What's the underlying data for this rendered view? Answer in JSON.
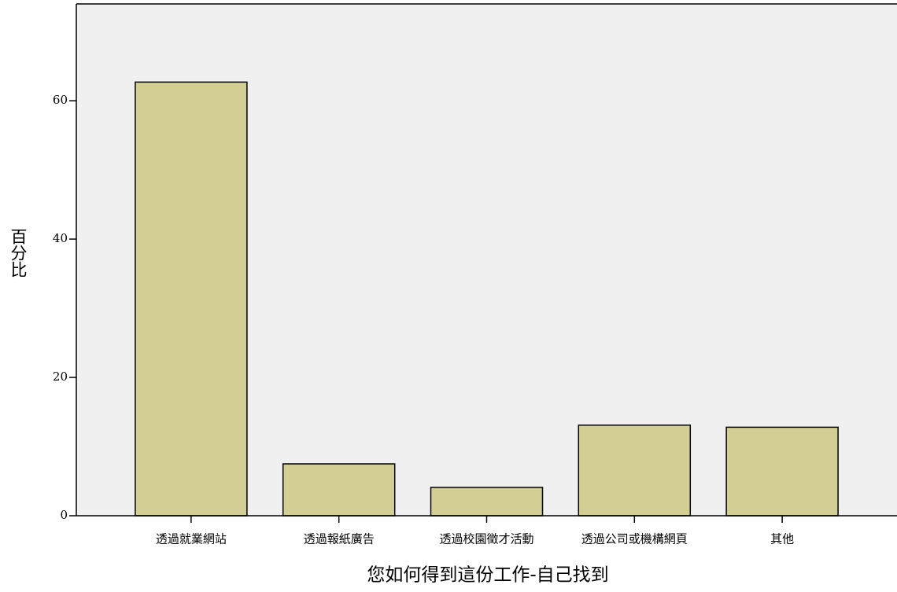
{
  "chart_data": {
    "type": "bar",
    "x_label": "您如何得到這份工作-自己找到",
    "y_label": "百分比",
    "categories": [
      "透過就業網站",
      "透過報紙廣告",
      "透過校園徵才活動",
      "透過公司或機構網頁",
      "其他"
    ],
    "values": [
      62.7,
      7.5,
      4.1,
      13.1,
      12.8
    ],
    "color": "#d3ce94",
    "ylim": [
      0,
      74
    ],
    "yticks": [
      0,
      20,
      40,
      60
    ]
  }
}
